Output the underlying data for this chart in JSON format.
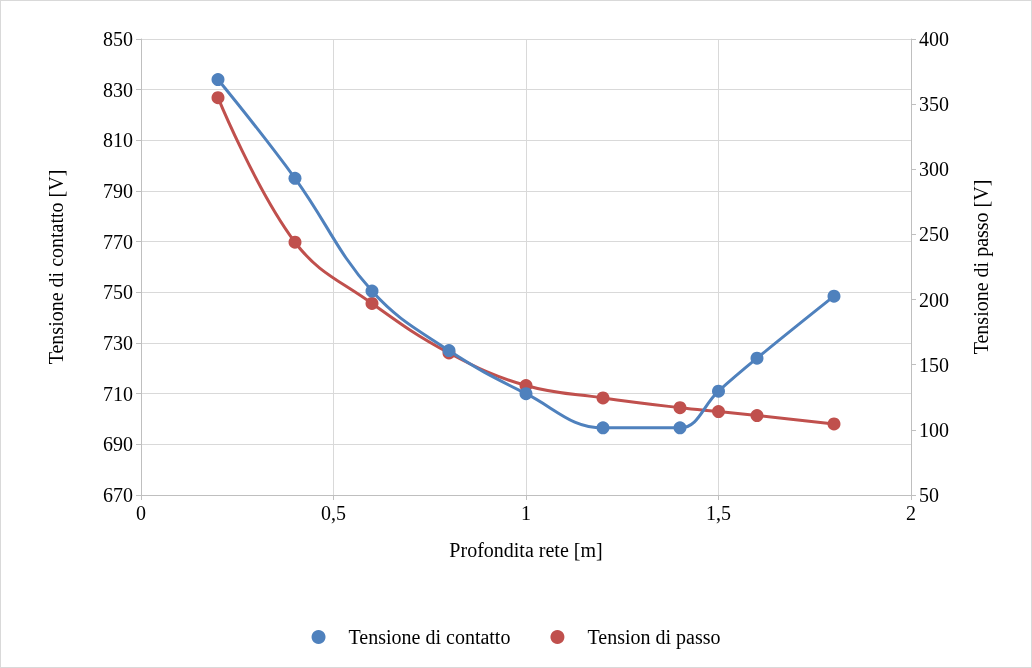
{
  "chart_data": {
    "type": "line",
    "xlabel": "Profondita rete [m]",
    "ylabel": "Tensione di contatto [V]",
    "y2label": "Tensione di passo [V]",
    "x": [
      0.2,
      0.4,
      0.6,
      0.8,
      1.0,
      1.2,
      1.4,
      1.5,
      1.6,
      1.8
    ],
    "series": [
      {
        "name": "Tensione di contatto",
        "color": "#4f81bd",
        "values": [
          834,
          795,
          750.5,
          727,
          710,
          696.5,
          696.5,
          711,
          724,
          748.5
        ]
      },
      {
        "name": "Tension di passo",
        "color": "#c0504d",
        "axis": "y2",
        "values": [
          355,
          244,
          197,
          159,
          134,
          124.5,
          117,
          114,
          111,
          104.5
        ]
      }
    ],
    "xlim": [
      0,
      2
    ],
    "xticks": [
      0,
      {
        "value": 0.5,
        "label": "0,5"
      },
      1,
      {
        "value": 1.5,
        "label": "1,5"
      },
      2
    ],
    "ylim": [
      670,
      850
    ],
    "yticks": [
      670,
      690,
      710,
      730,
      750,
      770,
      790,
      810,
      830,
      850
    ],
    "y2lim": [
      50,
      400
    ],
    "y2ticks": [
      50,
      100,
      150,
      200,
      250,
      300,
      350,
      400
    ],
    "grid": true,
    "legend": "bottom",
    "marker": "circle",
    "line_style": "solid"
  }
}
